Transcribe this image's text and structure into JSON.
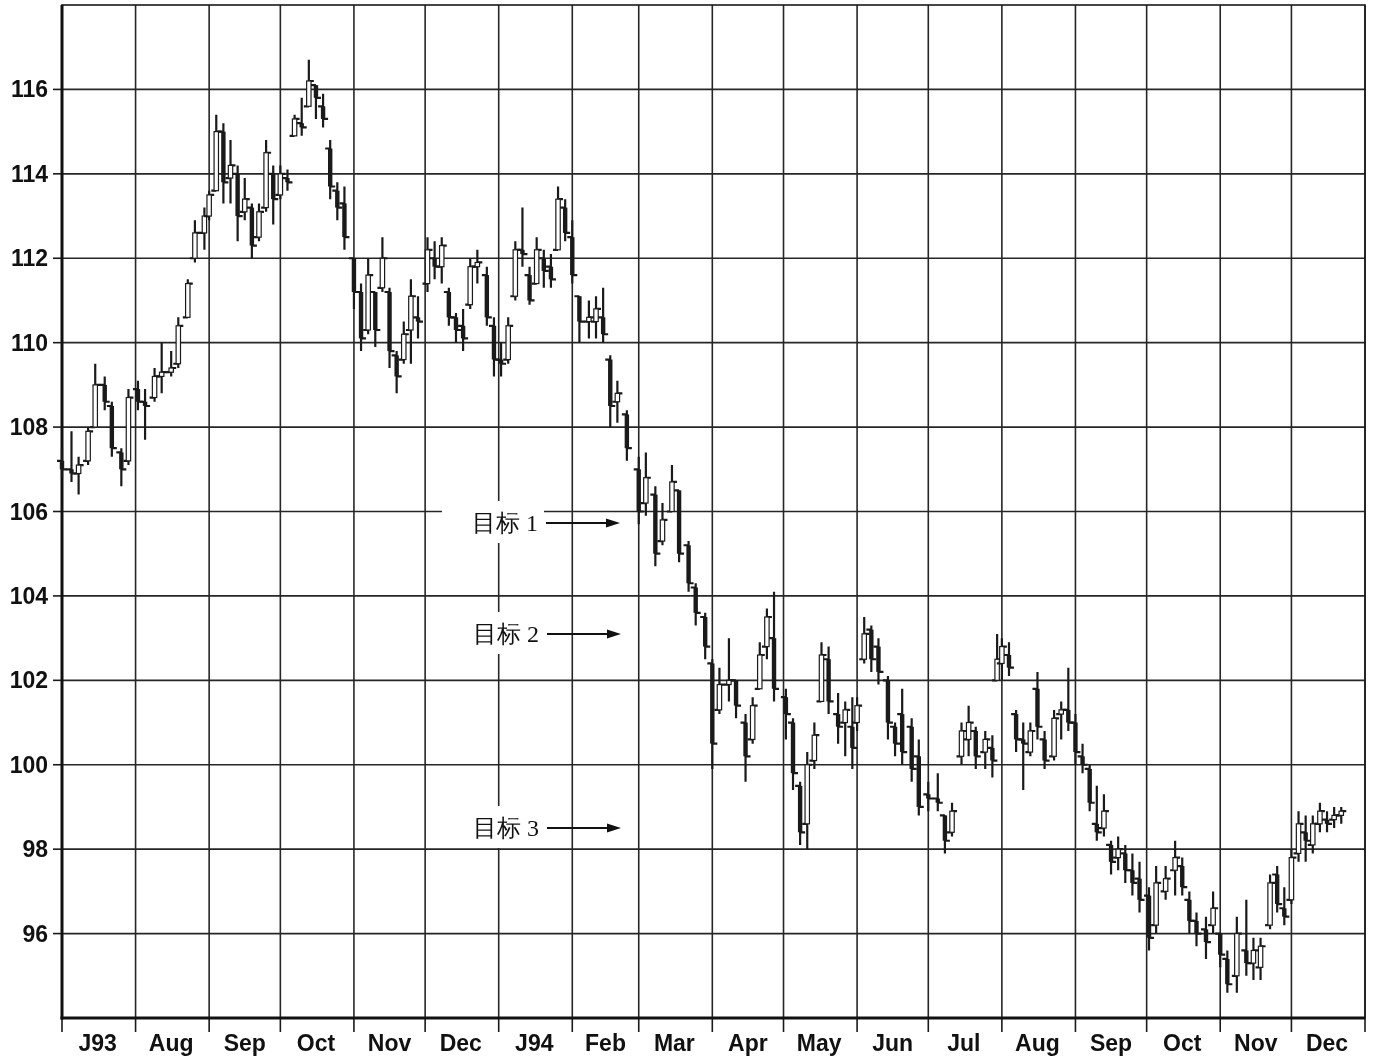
{
  "chart_data": {
    "type": "candlestick",
    "color": "#1a1a1a",
    "x": [
      "1993-07-01",
      "1993-07-05",
      "1993-07-08",
      "1993-07-12",
      "1993-07-15",
      "1993-07-19",
      "1993-07-22",
      "1993-07-26",
      "1993-07-29",
      "1993-08-02",
      "1993-08-05",
      "1993-08-09",
      "1993-08-12",
      "1993-08-16",
      "1993-08-19",
      "1993-08-23",
      "1993-08-26",
      "1993-08-30",
      "1993-09-01",
      "1993-09-04",
      "1993-09-07",
      "1993-09-10",
      "1993-09-13",
      "1993-09-16",
      "1993-09-19",
      "1993-09-22",
      "1993-09-25",
      "1993-09-28",
      "1993-10-01",
      "1993-10-04",
      "1993-10-07",
      "1993-10-10",
      "1993-10-13",
      "1993-10-16",
      "1993-10-19",
      "1993-10-22",
      "1993-10-25",
      "1993-10-28",
      "1993-11-01",
      "1993-11-04",
      "1993-11-07",
      "1993-11-10",
      "1993-11-13",
      "1993-11-16",
      "1993-11-19",
      "1993-11-22",
      "1993-11-25",
      "1993-11-28",
      "1993-12-02",
      "1993-12-05",
      "1993-12-08",
      "1993-12-11",
      "1993-12-14",
      "1993-12-17",
      "1993-12-20",
      "1993-12-23",
      "1993-12-27",
      "1993-12-30",
      "1994-01-02",
      "1994-01-05",
      "1994-01-08",
      "1994-01-11",
      "1994-01-14",
      "1994-01-17",
      "1994-01-20",
      "1994-01-23",
      "1994-01-26",
      "1994-01-29",
      "1994-02-01",
      "1994-02-04",
      "1994-02-08",
      "1994-02-11",
      "1994-02-14",
      "1994-02-17",
      "1994-02-20",
      "1994-02-24",
      "1994-03-01",
      "1994-03-04",
      "1994-03-08",
      "1994-03-11",
      "1994-03-15",
      "1994-03-18",
      "1994-03-22",
      "1994-03-25",
      "1994-03-29",
      "1994-04-01",
      "1994-04-04",
      "1994-04-08",
      "1994-04-11",
      "1994-04-15",
      "1994-04-18",
      "1994-04-21",
      "1994-04-24",
      "1994-04-27",
      "1994-05-02",
      "1994-05-05",
      "1994-05-08",
      "1994-05-11",
      "1994-05-14",
      "1994-05-17",
      "1994-05-20",
      "1994-05-24",
      "1994-05-27",
      "1994-05-30",
      "1994-06-01",
      "1994-06-04",
      "1994-06-07",
      "1994-06-10",
      "1994-06-14",
      "1994-06-17",
      "1994-06-20",
      "1994-06-24",
      "1994-06-27",
      "1994-07-01",
      "1994-07-05",
      "1994-07-08",
      "1994-07-11",
      "1994-07-15",
      "1994-07-18",
      "1994-07-21",
      "1994-07-25",
      "1994-07-28",
      "1994-07-30",
      "1994-08-01",
      "1994-08-04",
      "1994-08-07",
      "1994-08-10",
      "1994-08-13",
      "1994-08-16",
      "1994-08-19",
      "1994-08-23",
      "1994-08-26",
      "1994-08-29",
      "1994-09-01",
      "1994-09-04",
      "1994-09-07",
      "1994-09-10",
      "1994-09-13",
      "1994-09-16",
      "1994-09-19",
      "1994-09-22",
      "1994-09-25",
      "1994-09-28",
      "1994-10-02",
      "1994-10-05",
      "1994-10-09",
      "1994-10-13",
      "1994-10-16",
      "1994-10-19",
      "1994-10-22",
      "1994-10-26",
      "1994-10-29",
      "1994-11-01",
      "1994-11-04",
      "1994-11-08",
      "1994-11-12",
      "1994-11-15",
      "1994-11-18",
      "1994-11-22",
      "1994-11-25",
      "1994-11-28",
      "1994-12-01",
      "1994-12-04",
      "1994-12-07",
      "1994-12-10",
      "1994-12-13",
      "1994-12-16",
      "1994-12-19",
      "1994-12-22"
    ],
    "ohlc": [
      [
        107.2,
        107.5,
        106.8,
        107.0
      ],
      [
        107.0,
        107.9,
        106.7,
        106.9
      ],
      [
        106.9,
        107.3,
        106.4,
        107.1
      ],
      [
        107.2,
        108.0,
        107.1,
        107.9
      ],
      [
        108.0,
        109.5,
        108.0,
        109.0
      ],
      [
        109.0,
        109.2,
        108.4,
        108.6
      ],
      [
        108.5,
        108.6,
        107.3,
        107.5
      ],
      [
        107.4,
        107.5,
        106.6,
        107.0
      ],
      [
        107.2,
        108.9,
        107.1,
        108.7
      ],
      [
        108.9,
        109.1,
        108.4,
        108.6
      ],
      [
        108.6,
        108.9,
        107.7,
        108.5
      ],
      [
        108.7,
        109.4,
        108.6,
        109.2
      ],
      [
        109.2,
        110.0,
        108.8,
        109.3
      ],
      [
        109.3,
        109.8,
        109.2,
        109.4
      ],
      [
        109.5,
        110.6,
        109.4,
        110.4
      ],
      [
        110.6,
        111.5,
        110.6,
        111.4
      ],
      [
        112.0,
        112.9,
        111.9,
        112.6
      ],
      [
        112.6,
        113.2,
        112.2,
        113.0
      ],
      [
        113.0,
        113.6,
        112.9,
        113.5
      ],
      [
        113.6,
        115.4,
        113.6,
        115.0
      ],
      [
        115.0,
        115.2,
        113.3,
        113.8
      ],
      [
        113.9,
        114.8,
        113.3,
        114.2
      ],
      [
        114.0,
        114.2,
        112.4,
        113.0
      ],
      [
        113.1,
        113.9,
        112.9,
        113.4
      ],
      [
        113.2,
        113.3,
        112.0,
        112.3
      ],
      [
        112.5,
        113.3,
        112.4,
        113.1
      ],
      [
        113.2,
        114.8,
        113.1,
        114.5
      ],
      [
        114.0,
        114.2,
        112.8,
        113.4
      ],
      [
        113.5,
        114.2,
        113.4,
        114.0
      ],
      [
        113.9,
        114.1,
        113.6,
        113.8
      ],
      [
        114.9,
        115.4,
        114.9,
        115.3
      ],
      [
        115.2,
        115.8,
        114.9,
        115.1
      ],
      [
        115.6,
        116.7,
        115.6,
        116.2
      ],
      [
        116.1,
        116.1,
        115.3,
        115.8
      ],
      [
        115.6,
        115.9,
        115.1,
        115.3
      ],
      [
        114.6,
        114.8,
        113.4,
        113.7
      ],
      [
        113.6,
        113.8,
        112.9,
        113.2
      ],
      [
        113.3,
        113.7,
        112.2,
        112.5
      ],
      [
        112.0,
        112.0,
        110.8,
        111.2
      ],
      [
        111.2,
        111.4,
        109.8,
        110.1
      ],
      [
        110.3,
        112.0,
        110.2,
        111.6
      ],
      [
        111.2,
        111.2,
        109.9,
        110.3
      ],
      [
        111.3,
        112.5,
        111.2,
        112.0
      ],
      [
        111.2,
        111.3,
        109.4,
        109.8
      ],
      [
        109.7,
        109.8,
        108.8,
        109.2
      ],
      [
        109.6,
        110.5,
        109.5,
        110.2
      ],
      [
        110.3,
        111.5,
        109.5,
        111.1
      ],
      [
        110.6,
        111.1,
        110.1,
        110.5
      ],
      [
        111.4,
        112.5,
        111.2,
        112.2
      ],
      [
        112.0,
        112.4,
        111.5,
        111.8
      ],
      [
        111.8,
        112.5,
        111.4,
        112.3
      ],
      [
        111.2,
        111.3,
        110.4,
        110.6
      ],
      [
        110.6,
        110.7,
        110.0,
        110.3
      ],
      [
        110.4,
        110.8,
        109.8,
        110.1
      ],
      [
        110.9,
        112.0,
        110.8,
        111.8
      ],
      [
        111.8,
        112.2,
        111.4,
        111.9
      ],
      [
        111.6,
        111.8,
        110.4,
        110.6
      ],
      [
        110.4,
        110.6,
        109.2,
        109.6
      ],
      [
        109.6,
        110.0,
        109.2,
        109.5
      ],
      [
        109.6,
        110.6,
        109.5,
        110.4
      ],
      [
        111.1,
        112.4,
        111.0,
        112.2
      ],
      [
        112.2,
        113.2,
        111.8,
        112.1
      ],
      [
        111.6,
        111.8,
        110.9,
        111.0
      ],
      [
        111.4,
        112.5,
        111.4,
        112.2
      ],
      [
        112.0,
        112.2,
        111.3,
        111.7
      ],
      [
        111.8,
        112.1,
        111.3,
        111.5
      ],
      [
        112.2,
        113.7,
        112.2,
        113.4
      ],
      [
        113.2,
        113.4,
        112.4,
        112.6
      ],
      [
        112.5,
        112.9,
        111.4,
        111.6
      ],
      [
        111.1,
        111.1,
        110.0,
        110.5
      ],
      [
        110.5,
        111.0,
        110.1,
        110.6
      ],
      [
        110.5,
        111.1,
        110.1,
        110.8
      ],
      [
        110.6,
        111.3,
        110.0,
        110.2
      ],
      [
        109.6,
        109.7,
        108.0,
        108.5
      ],
      [
        108.6,
        109.1,
        108.1,
        108.8
      ],
      [
        108.3,
        108.4,
        107.2,
        107.5
      ],
      [
        107.0,
        107.3,
        105.7,
        106.0
      ],
      [
        106.2,
        107.4,
        105.9,
        106.8
      ],
      [
        106.4,
        106.6,
        104.7,
        105.0
      ],
      [
        105.3,
        106.2,
        105.2,
        105.8
      ],
      [
        106.0,
        107.1,
        106.0,
        106.7
      ],
      [
        106.5,
        106.5,
        104.8,
        105.0
      ],
      [
        105.2,
        105.3,
        104.1,
        104.3
      ],
      [
        104.2,
        104.3,
        103.3,
        103.6
      ],
      [
        103.5,
        103.6,
        102.5,
        102.8
      ],
      [
        102.4,
        102.5,
        99.9,
        100.5
      ],
      [
        101.3,
        102.3,
        101.2,
        101.9
      ],
      [
        101.9,
        103.0,
        101.5,
        102.0
      ],
      [
        102.0,
        102.0,
        101.1,
        101.4
      ],
      [
        101.0,
        101.2,
        99.6,
        100.2
      ],
      [
        100.6,
        101.6,
        100.5,
        101.4
      ],
      [
        101.8,
        102.9,
        101.8,
        102.6
      ],
      [
        102.8,
        103.7,
        102.5,
        103.5
      ],
      [
        103.0,
        104.1,
        101.5,
        101.8
      ],
      [
        101.6,
        101.8,
        100.6,
        101.2
      ],
      [
        101.0,
        101.1,
        99.4,
        99.8
      ],
      [
        99.5,
        99.6,
        98.1,
        98.4
      ],
      [
        98.6,
        100.3,
        98.0,
        100.0
      ],
      [
        100.1,
        101.0,
        99.9,
        100.7
      ],
      [
        101.5,
        102.9,
        101.5,
        102.6
      ],
      [
        102.5,
        102.8,
        101.2,
        101.5
      ],
      [
        101.2,
        101.7,
        100.5,
        100.9
      ],
      [
        101.0,
        101.5,
        100.2,
        101.3
      ],
      [
        100.9,
        101.6,
        99.9,
        100.4
      ],
      [
        101.0,
        101.6,
        100.8,
        101.4
      ],
      [
        102.5,
        103.5,
        102.4,
        103.1
      ],
      [
        103.2,
        103.3,
        102.2,
        102.5
      ],
      [
        102.8,
        103.0,
        101.9,
        102.2
      ],
      [
        102.0,
        102.1,
        100.6,
        101.0
      ],
      [
        100.9,
        101.0,
        100.2,
        100.5
      ],
      [
        101.2,
        101.8,
        100.0,
        100.3
      ],
      [
        100.9,
        101.1,
        99.6,
        99.9
      ],
      [
        100.2,
        100.6,
        98.8,
        99.0
      ],
      [
        99.3,
        99.6,
        98.9,
        99.2
      ],
      [
        99.2,
        99.8,
        98.9,
        99.1
      ],
      [
        98.8,
        98.8,
        97.9,
        98.2
      ],
      [
        98.4,
        99.1,
        98.3,
        98.9
      ],
      [
        100.2,
        101.0,
        100.0,
        100.8
      ],
      [
        100.6,
        101.4,
        100.2,
        101.0
      ],
      [
        100.8,
        100.9,
        99.9,
        100.2
      ],
      [
        100.3,
        100.8,
        99.9,
        100.6
      ],
      [
        100.4,
        100.7,
        99.7,
        100.1
      ],
      [
        102.0,
        103.1,
        102.0,
        102.5
      ],
      [
        102.4,
        103.0,
        102.0,
        102.8
      ],
      [
        102.6,
        102.9,
        102.1,
        102.3
      ],
      [
        101.2,
        101.3,
        100.3,
        100.6
      ],
      [
        100.6,
        101.0,
        99.4,
        100.5
      ],
      [
        100.3,
        101.0,
        100.2,
        100.8
      ],
      [
        101.8,
        102.2,
        100.6,
        100.9
      ],
      [
        100.6,
        100.8,
        99.9,
        100.1
      ],
      [
        100.2,
        101.3,
        100.1,
        101.1
      ],
      [
        101.2,
        101.5,
        100.6,
        101.3
      ],
      [
        101.3,
        102.3,
        100.8,
        101.0
      ],
      [
        101.0,
        101.2,
        100.0,
        100.3
      ],
      [
        100.2,
        100.5,
        99.8,
        100.0
      ],
      [
        99.9,
        100.0,
        98.9,
        99.1
      ],
      [
        98.6,
        99.5,
        98.2,
        98.4
      ],
      [
        98.5,
        99.3,
        98.3,
        98.9
      ],
      [
        98.1,
        98.2,
        97.4,
        97.7
      ],
      [
        97.8,
        98.3,
        97.5,
        98.0
      ],
      [
        97.9,
        98.1,
        97.2,
        97.5
      ],
      [
        97.5,
        97.9,
        96.9,
        97.2
      ],
      [
        97.3,
        97.7,
        96.5,
        96.8
      ],
      [
        96.9,
        97.1,
        95.6,
        95.9
      ],
      [
        96.2,
        97.6,
        96.0,
        97.2
      ],
      [
        97.0,
        97.6,
        96.8,
        97.3
      ],
      [
        97.5,
        98.2,
        96.9,
        97.8
      ],
      [
        97.6,
        97.8,
        96.9,
        97.1
      ],
      [
        96.8,
        97.0,
        96.0,
        96.3
      ],
      [
        96.3,
        96.5,
        95.7,
        96.0
      ],
      [
        96.1,
        96.4,
        95.4,
        95.8
      ],
      [
        96.2,
        97.0,
        96.0,
        96.6
      ],
      [
        96.0,
        96.0,
        95.2,
        95.5
      ],
      [
        95.4,
        95.6,
        94.6,
        94.8
      ],
      [
        95.0,
        96.4,
        94.6,
        96.0
      ],
      [
        95.6,
        96.8,
        95.0,
        95.3
      ],
      [
        95.3,
        95.9,
        94.9,
        95.6
      ],
      [
        95.2,
        95.9,
        94.9,
        95.7
      ],
      [
        96.2,
        97.4,
        96.1,
        97.2
      ],
      [
        97.4,
        97.6,
        96.5,
        96.7
      ],
      [
        96.6,
        97.1,
        96.2,
        96.4
      ],
      [
        96.8,
        98.0,
        96.7,
        97.8
      ],
      [
        97.9,
        98.9,
        97.7,
        98.6
      ],
      [
        98.4,
        98.8,
        97.7,
        98.2
      ],
      [
        98.1,
        98.8,
        97.9,
        98.6
      ],
      [
        98.6,
        99.1,
        98.4,
        98.9
      ],
      [
        98.7,
        98.9,
        98.4,
        98.6
      ],
      [
        98.7,
        99.0,
        98.5,
        98.8
      ],
      [
        98.8,
        99.0,
        98.6,
        98.9
      ]
    ],
    "xlim": [
      "1993-07-01",
      "1995-01-01"
    ],
    "xticks": [
      {
        "value": "1993-07-01",
        "label": null
      },
      {
        "value": "1993-07-16",
        "label": "J93"
      },
      {
        "value": "1993-08-01",
        "label": null
      },
      {
        "value": "1993-08-16",
        "label": "Aug"
      },
      {
        "value": "1993-09-01",
        "label": null
      },
      {
        "value": "1993-09-16",
        "label": "Sep"
      },
      {
        "value": "1993-10-01",
        "label": null
      },
      {
        "value": "1993-10-16",
        "label": "Oct"
      },
      {
        "value": "1993-11-01",
        "label": null
      },
      {
        "value": "1993-11-16",
        "label": "Nov"
      },
      {
        "value": "1993-12-01",
        "label": null
      },
      {
        "value": "1993-12-16",
        "label": "Dec"
      },
      {
        "value": "1994-01-01",
        "label": null
      },
      {
        "value": "1994-01-16",
        "label": "J94"
      },
      {
        "value": "1994-02-01",
        "label": null
      },
      {
        "value": "1994-02-15",
        "label": "Feb"
      },
      {
        "value": "1994-03-01",
        "label": null
      },
      {
        "value": "1994-03-16",
        "label": "Mar"
      },
      {
        "value": "1994-04-01",
        "label": null
      },
      {
        "value": "1994-04-16",
        "label": "Apr"
      },
      {
        "value": "1994-05-01",
        "label": null
      },
      {
        "value": "1994-05-16",
        "label": "May"
      },
      {
        "value": "1994-06-01",
        "label": null
      },
      {
        "value": "1994-06-16",
        "label": "Jun"
      },
      {
        "value": "1994-07-01",
        "label": null
      },
      {
        "value": "1994-07-16",
        "label": "Jul"
      },
      {
        "value": "1994-08-01",
        "label": null
      },
      {
        "value": "1994-08-16",
        "label": "Aug"
      },
      {
        "value": "1994-09-01",
        "label": null
      },
      {
        "value": "1994-09-16",
        "label": "Sep"
      },
      {
        "value": "1994-10-01",
        "label": null
      },
      {
        "value": "1994-10-16",
        "label": "Oct"
      },
      {
        "value": "1994-11-01",
        "label": null
      },
      {
        "value": "1994-11-16",
        "label": "Nov"
      },
      {
        "value": "1994-12-01",
        "label": null
      },
      {
        "value": "1994-12-16",
        "label": "Dec"
      },
      {
        "value": "1995-01-01",
        "label": null
      }
    ],
    "ylim": [
      94,
      118
    ],
    "yticks": [
      96,
      98,
      100,
      102,
      104,
      106,
      108,
      110,
      112,
      114,
      116
    ],
    "grid": true,
    "annotations": [
      "目标 1",
      "目标 2",
      "目标 3"
    ]
  }
}
